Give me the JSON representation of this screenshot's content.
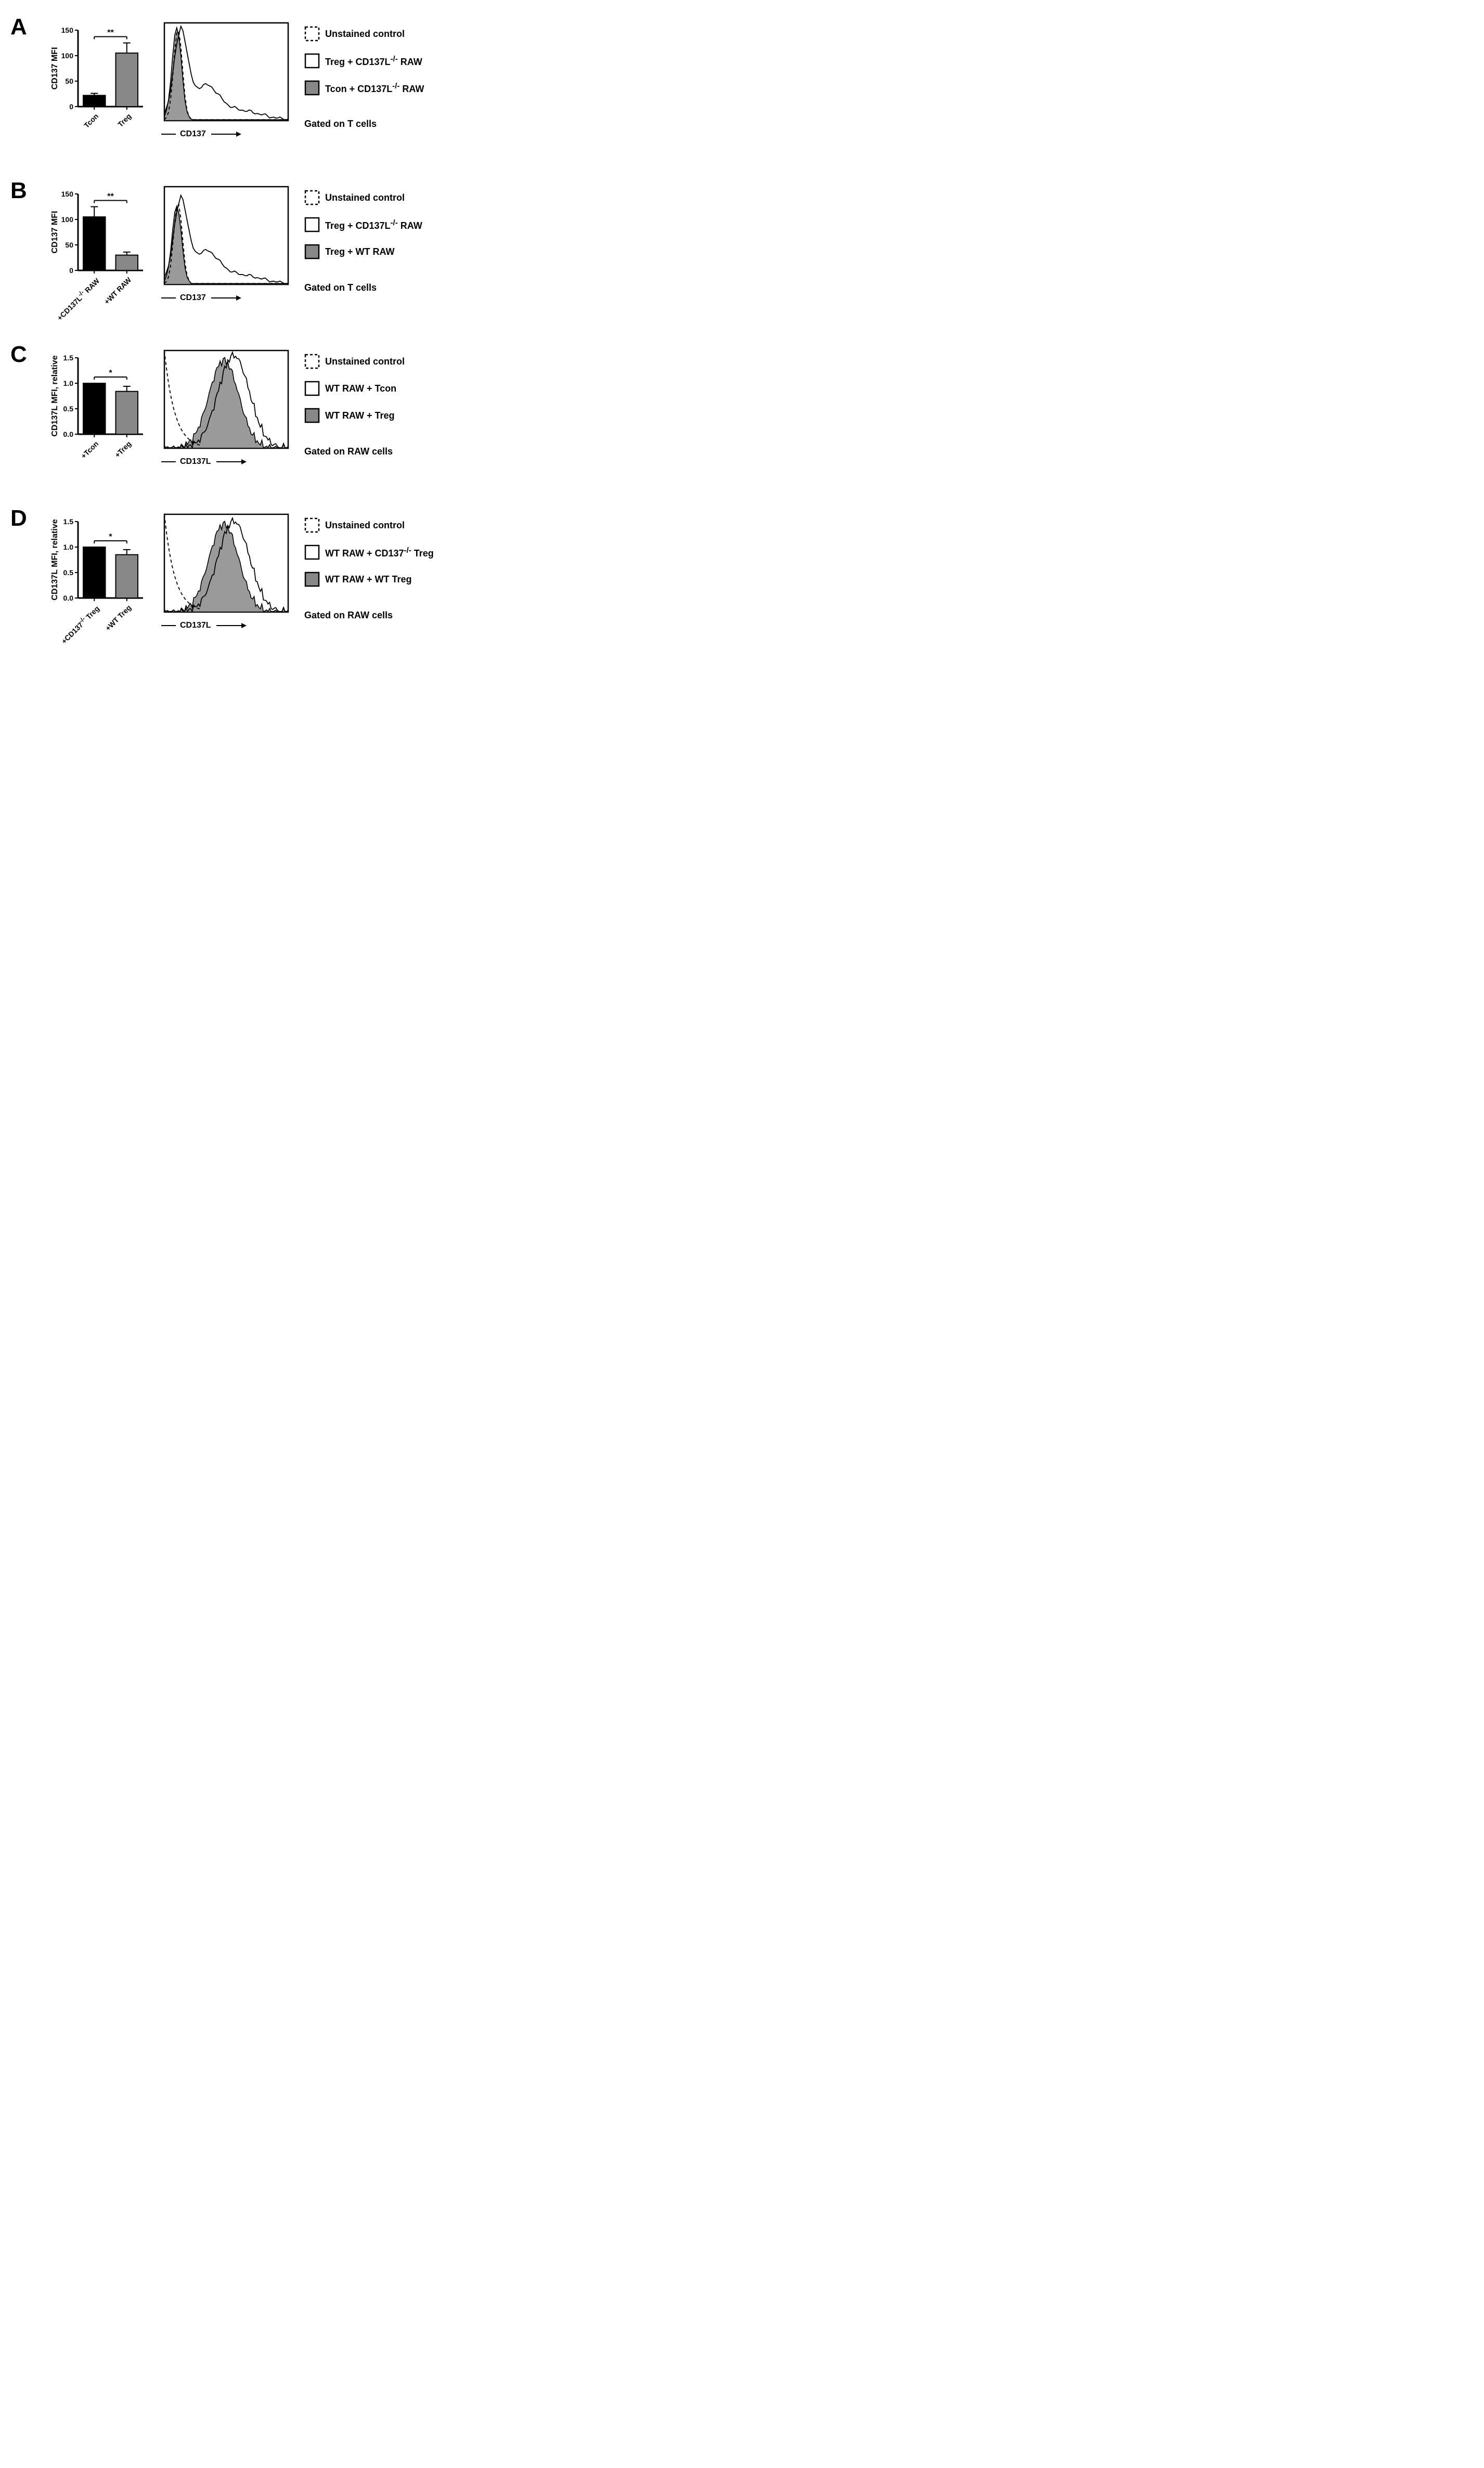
{
  "panels": {
    "A": {
      "label": "A",
      "bar": {
        "ylabel": "CD137 MFI",
        "ylim": [
          0,
          150
        ],
        "ytick_step": 50,
        "categories": [
          "Tcon",
          "Treg"
        ],
        "values": [
          22,
          105
        ],
        "errors": [
          4,
          20
        ],
        "colors": [
          "#000000",
          "#888888"
        ],
        "sig": "**"
      },
      "hist": {
        "axis_label": "CD137",
        "gate": "Gated on T cells",
        "curves": {
          "unstained": {
            "peak_x": 0.11,
            "peak_y": 0.93,
            "spread": 0.05,
            "style": "dashed"
          },
          "open": {
            "peak_x": 0.13,
            "peak_y": 0.9,
            "spread": 0.08,
            "style": "open",
            "shoulder": true
          },
          "filled": {
            "peak_x": 0.1,
            "peak_y": 0.95,
            "spread": 0.055,
            "style": "filled"
          }
        }
      },
      "legend": [
        {
          "style": "dashed",
          "text": "Unstained control"
        },
        {
          "style": "open",
          "text_html": "Treg + CD137L<sup>-/-</sup> RAW"
        },
        {
          "style": "filled",
          "text_html": "Tcon + CD137L<sup>-/-</sup> RAW"
        }
      ]
    },
    "B": {
      "label": "B",
      "bar": {
        "ylabel": "CD137 MFI",
        "ylim": [
          0,
          150
        ],
        "ytick_step": 50,
        "categories_html": [
          "+CD137L<sup>-/-</sup> RAW",
          "+WT RAW"
        ],
        "values": [
          105,
          30
        ],
        "errors": [
          20,
          6
        ],
        "colors": [
          "#000000",
          "#888888"
        ],
        "sig": "**"
      },
      "hist": {
        "axis_label": "CD137",
        "gate": "Gated on T cells",
        "curves": {
          "unstained": {
            "peak_x": 0.11,
            "peak_y": 0.83,
            "spread": 0.05,
            "style": "dashed"
          },
          "open": {
            "peak_x": 0.13,
            "peak_y": 0.85,
            "spread": 0.08,
            "style": "open",
            "shoulder": true
          },
          "filled": {
            "peak_x": 0.1,
            "peak_y": 0.8,
            "spread": 0.055,
            "style": "filled"
          }
        }
      },
      "legend": [
        {
          "style": "dashed",
          "text": "Unstained control"
        },
        {
          "style": "open",
          "text_html": "Treg + CD137L<sup>-/-</sup> RAW"
        },
        {
          "style": "filled",
          "text": "Treg + WT RAW"
        }
      ]
    },
    "C": {
      "label": "C",
      "bar": {
        "ylabel": "CD137L MFI, relative",
        "ylim": [
          0,
          1.5
        ],
        "ytick_step": 0.5,
        "categories": [
          "+Tcon",
          "+Treg"
        ],
        "values": [
          1.0,
          0.84
        ],
        "errors": [
          0.0,
          0.1
        ],
        "colors": [
          "#000000",
          "#888888"
        ],
        "sig": "*"
      },
      "hist": {
        "axis_label": "CD137L",
        "gate": "Gated on RAW cells",
        "curves": {
          "unstained": {
            "style": "dashed_falling"
          },
          "open": {
            "peak_x": 0.56,
            "peak_y": 0.95,
            "spread": 0.18,
            "style": "open"
          },
          "filled": {
            "peak_x": 0.48,
            "peak_y": 0.9,
            "spread": 0.17,
            "style": "filled"
          }
        }
      },
      "legend": [
        {
          "style": "dashed",
          "text": "Unstained control"
        },
        {
          "style": "open",
          "text": "WT RAW + Tcon"
        },
        {
          "style": "filled",
          "text": "WT RAW + Treg"
        }
      ]
    },
    "D": {
      "label": "D",
      "bar": {
        "ylabel": "CD137L MFI, relative",
        "ylim": [
          0,
          1.5
        ],
        "ytick_step": 0.5,
        "categories_html": [
          "+CD137<sup>-/-</sup> Treg",
          "+WT Treg"
        ],
        "values": [
          1.0,
          0.85
        ],
        "errors": [
          0.0,
          0.1
        ],
        "colors": [
          "#000000",
          "#888888"
        ],
        "sig": "*"
      },
      "hist": {
        "axis_label": "CD137L",
        "gate": "Gated on RAW cells",
        "curves": {
          "unstained": {
            "style": "dashed_falling"
          },
          "open": {
            "peak_x": 0.56,
            "peak_y": 0.93,
            "spread": 0.18,
            "style": "open"
          },
          "filled": {
            "peak_x": 0.48,
            "peak_y": 0.9,
            "spread": 0.17,
            "style": "filled"
          }
        }
      },
      "legend": [
        {
          "style": "dashed",
          "text": "Unstained control"
        },
        {
          "style": "open",
          "text_html": "WT RAW + CD137<sup>-/-</sup> Treg"
        },
        {
          "style": "filled",
          "text": "WT RAW + WT Treg"
        }
      ]
    }
  },
  "colors": {
    "black": "#000000",
    "grey_fill": "#888888",
    "grey_light": "#a8a8a8",
    "bg": "#ffffff"
  },
  "sizes": {
    "bar_svg_w": 190,
    "bar_svg_h": 260,
    "hist_svg_w": 250,
    "hist_svg_h": 200
  }
}
